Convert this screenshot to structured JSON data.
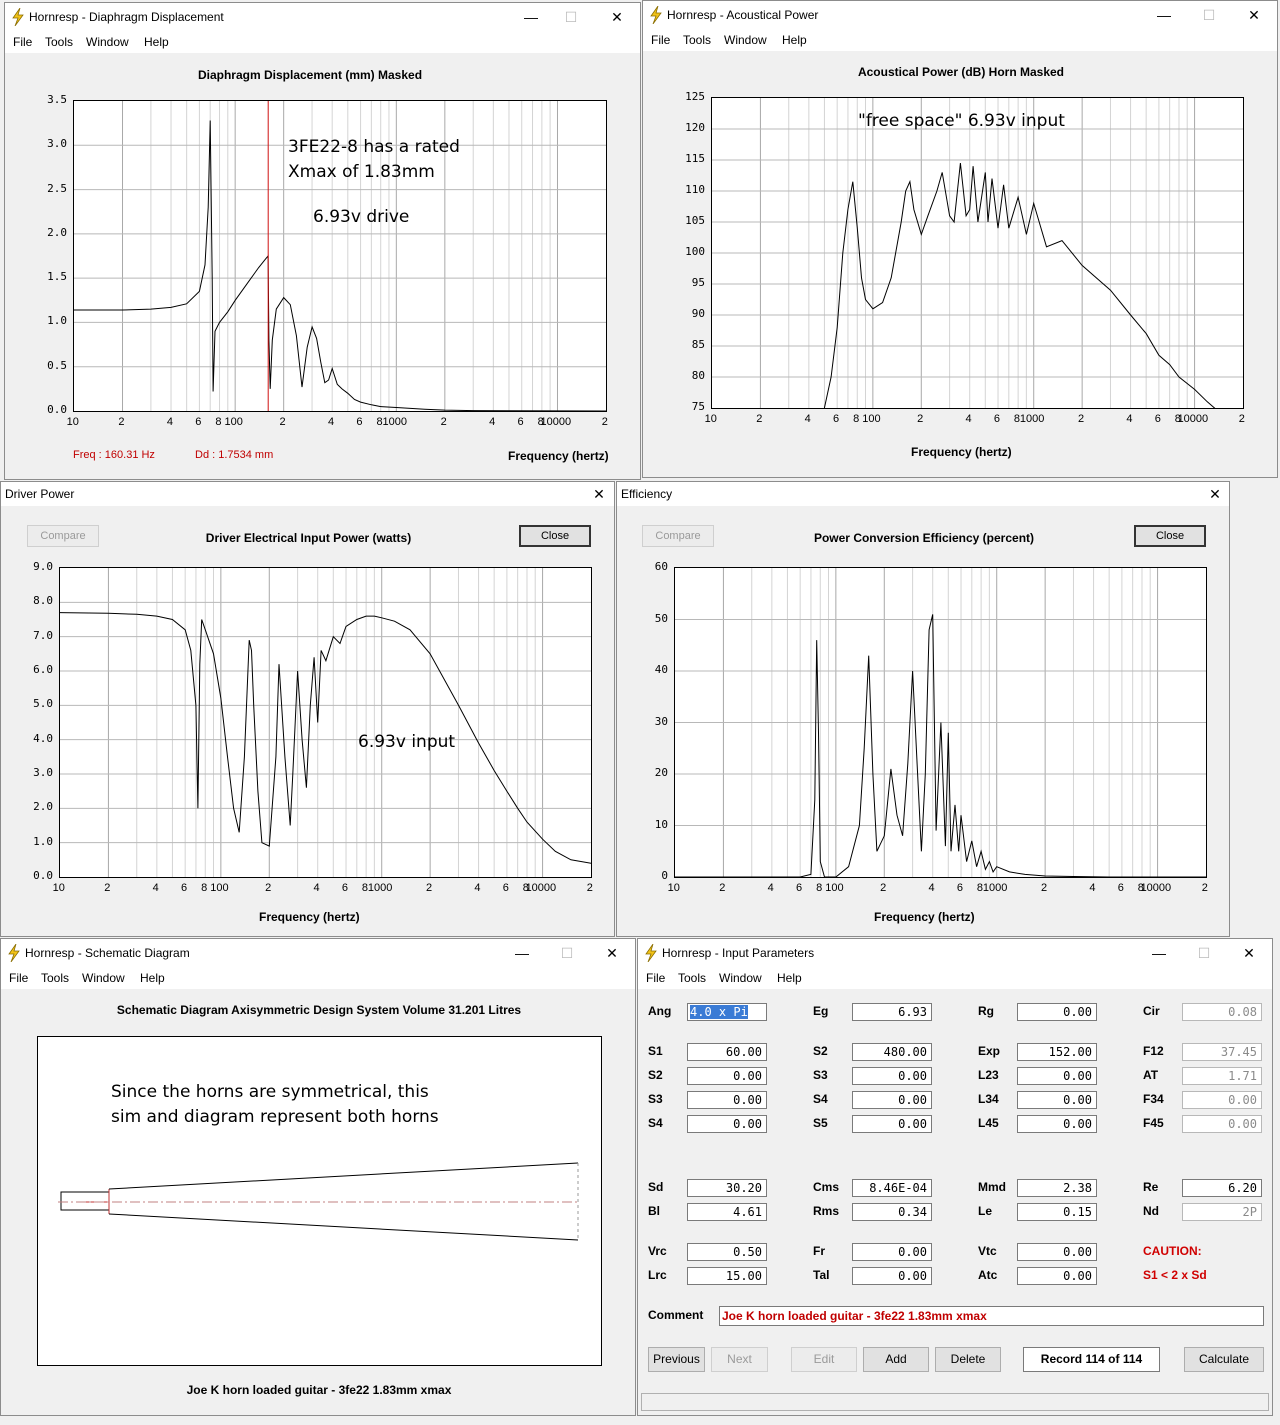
{
  "windows": {
    "displacement": {
      "title": "Hornresp - Diaphragm Displacement",
      "menu": [
        "File",
        "Tools",
        "Window",
        "Help"
      ],
      "plot_title": "Diaphragm Displacement (mm)   Masked",
      "x_axis_label": "Frequency (hertz)",
      "status_freq": "Freq : 160.31 Hz",
      "status_dd": "Dd : 1.7534 mm",
      "annotation_line1": "3FE22-8 has a rated",
      "annotation_line2": "Xmax of 1.83mm",
      "annotation_line3": "6.93v drive"
    },
    "acoustical": {
      "title": "Hornresp - Acoustical Power",
      "menu": [
        "File",
        "Tools",
        "Window",
        "Help"
      ],
      "plot_title": "Acoustical Power (dB)   Horn   Masked",
      "x_axis_label": "Frequency (hertz)",
      "annotation": "\"free space\"  6.93v input"
    },
    "driver_power": {
      "title": "Driver Power",
      "compare_label": "Compare",
      "close_label": "Close",
      "plot_title": "Driver Electrical Input Power (watts)",
      "x_axis_label": "Frequency (hertz)",
      "annotation": "6.93v input"
    },
    "efficiency": {
      "title": "Efficiency",
      "compare_label": "Compare",
      "close_label": "Close",
      "plot_title": "Power Conversion Efficiency (percent)",
      "x_axis_label": "Frequency (hertz)"
    },
    "schematic": {
      "title": "Hornresp - Schematic Diagram",
      "menu": [
        "File",
        "Tools",
        "Window",
        "Help"
      ],
      "header": "Schematic Diagram   Axisymmetric Design   System Volume 31.201 Litres",
      "annotation_line1": "Since the horns are symmetrical, this",
      "annotation_line2": "sim and diagram represent both horns",
      "footer": "Joe K horn loaded guitar - 3fe22  1.83mm xmax"
    },
    "input_params": {
      "title": "Hornresp - Input Parameters",
      "menu": [
        "File",
        "Tools",
        "Window",
        "Help"
      ],
      "params": [
        {
          "label": "Ang",
          "value": "4.0 x Pi",
          "col": 0,
          "row": 0,
          "state": "selected"
        },
        {
          "label": "Eg",
          "value": "6.93",
          "col": 1,
          "row": 0
        },
        {
          "label": "Rg",
          "value": "0.00",
          "col": 2,
          "row": 0
        },
        {
          "label": "Cir",
          "value": "0.08",
          "col": 3,
          "row": 0,
          "state": "readonly"
        },
        {
          "label": "S1",
          "value": "60.00",
          "col": 0,
          "row": 1
        },
        {
          "label": "S2",
          "value": "480.00",
          "col": 1,
          "row": 1
        },
        {
          "label": "Exp",
          "value": "152.00",
          "col": 2,
          "row": 1
        },
        {
          "label": "F12",
          "value": "37.45",
          "col": 3,
          "row": 1,
          "state": "readonly"
        },
        {
          "label": "S2",
          "value": "0.00",
          "col": 0,
          "row": 2
        },
        {
          "label": "S3",
          "value": "0.00",
          "col": 1,
          "row": 2
        },
        {
          "label": "L23",
          "value": "0.00",
          "col": 2,
          "row": 2
        },
        {
          "label": "AT",
          "value": "1.71",
          "col": 3,
          "row": 2,
          "state": "readonly"
        },
        {
          "label": "S3",
          "value": "0.00",
          "col": 0,
          "row": 3
        },
        {
          "label": "S4",
          "value": "0.00",
          "col": 1,
          "row": 3
        },
        {
          "label": "L34",
          "value": "0.00",
          "col": 2,
          "row": 3
        },
        {
          "label": "F34",
          "value": "0.00",
          "col": 3,
          "row": 3,
          "state": "readonly"
        },
        {
          "label": "S4",
          "value": "0.00",
          "col": 0,
          "row": 4
        },
        {
          "label": "S5",
          "value": "0.00",
          "col": 1,
          "row": 4
        },
        {
          "label": "L45",
          "value": "0.00",
          "col": 2,
          "row": 4
        },
        {
          "label": "F45",
          "value": "0.00",
          "col": 3,
          "row": 4,
          "state": "readonly"
        },
        {
          "label": "Sd",
          "value": "30.20",
          "col": 0,
          "row": 5
        },
        {
          "label": "Cms",
          "value": "8.46E-04",
          "col": 1,
          "row": 5
        },
        {
          "label": "Mmd",
          "value": "2.38",
          "col": 2,
          "row": 5
        },
        {
          "label": "Re",
          "value": "6.20",
          "col": 3,
          "row": 5
        },
        {
          "label": "Bl",
          "value": "4.61",
          "col": 0,
          "row": 6
        },
        {
          "label": "Rms",
          "value": "0.34",
          "col": 1,
          "row": 6
        },
        {
          "label": "Le",
          "value": "0.15",
          "col": 2,
          "row": 6
        },
        {
          "label": "Nd",
          "value": "2P",
          "col": 3,
          "row": 6,
          "state": "readonly"
        },
        {
          "label": "Vrc",
          "value": "0.50",
          "col": 0,
          "row": 7
        },
        {
          "label": "Fr",
          "value": "0.00",
          "col": 1,
          "row": 7
        },
        {
          "label": "Vtc",
          "value": "0.00",
          "col": 2,
          "row": 7
        },
        {
          "label": "Lrc",
          "value": "15.00",
          "col": 0,
          "row": 8
        },
        {
          "label": "Tal",
          "value": "0.00",
          "col": 1,
          "row": 8
        },
        {
          "label": "Atc",
          "value": "0.00",
          "col": 2,
          "row": 8
        }
      ],
      "caution_title": "CAUTION:",
      "caution_text": "S1 < 2 x Sd",
      "comment_label": "Comment",
      "comment_value": "Joe K horn loaded guitar - 3fe22  1.83mm xmax",
      "buttons": {
        "previous": "Previous",
        "next": "Next",
        "edit": "Edit",
        "add": "Add",
        "delete": "Delete",
        "record": "Record 114 of 114",
        "calculate": "Calculate"
      }
    }
  },
  "x_tick_labels": [
    "10",
    "2",
    "4",
    "6",
    "8",
    "100",
    "2",
    "4",
    "6",
    "8",
    "1000",
    "2",
    "4",
    "6",
    "8",
    "10000",
    "2"
  ],
  "chart_data": [
    {
      "type": "line",
      "title": "Diaphragm Displacement (mm)   Masked",
      "xlabel": "Frequency (hertz)",
      "xscale": "log",
      "xlim": [
        10,
        20000
      ],
      "ylim": [
        0,
        3.5
      ],
      "yticks": [
        "0.0",
        "0.5",
        "1.0",
        "1.5",
        "2.0",
        "2.5",
        "3.0",
        "3.5"
      ],
      "marker_x": 160.31,
      "series": [
        {
          "x": [
            10,
            20,
            30,
            40,
            50,
            60,
            65,
            68,
            70,
            72,
            73,
            75,
            80,
            90,
            100,
            120,
            140,
            155,
            160,
            162,
            165,
            170,
            180,
            200,
            220,
            240,
            260,
            280,
            300,
            320,
            340,
            360,
            380,
            400,
            430,
            460,
            500,
            550,
            600,
            700,
            800,
            1000,
            1500,
            2000,
            3000,
            5000,
            10000,
            20000
          ],
          "y": [
            1.14,
            1.14,
            1.15,
            1.17,
            1.21,
            1.35,
            1.65,
            2.3,
            3.28,
            1.5,
            0.22,
            0.9,
            1.0,
            1.12,
            1.25,
            1.45,
            1.62,
            1.72,
            1.75,
            0.8,
            0.25,
            0.8,
            1.15,
            1.28,
            1.2,
            0.85,
            0.27,
            0.72,
            0.95,
            0.82,
            0.55,
            0.32,
            0.35,
            0.48,
            0.3,
            0.25,
            0.2,
            0.13,
            0.1,
            0.07,
            0.05,
            0.04,
            0.02,
            0.01,
            0.005,
            0.002,
            0.001,
            0.0
          ]
        }
      ]
    },
    {
      "type": "line",
      "title": "Acoustical Power (dB)   Horn   Masked",
      "xlabel": "Frequency (hertz)",
      "xscale": "log",
      "xlim": [
        10,
        20000
      ],
      "ylim": [
        75,
        125
      ],
      "yticks": [
        "75",
        "80",
        "85",
        "90",
        "95",
        "100",
        "105",
        "110",
        "115",
        "120",
        "125"
      ],
      "series": [
        {
          "x": [
            50,
            55,
            60,
            65,
            70,
            75,
            80,
            85,
            90,
            100,
            115,
            130,
            150,
            160,
            170,
            180,
            200,
            220,
            250,
            270,
            300,
            320,
            350,
            380,
            400,
            420,
            450,
            500,
            520,
            550,
            600,
            650,
            700,
            800,
            900,
            1000,
            1200,
            1500,
            2000,
            3000,
            4000,
            5000,
            6000,
            7000,
            8000,
            10000,
            12000,
            14000
          ],
          "y": [
            75,
            80,
            88,
            100,
            107,
            111.5,
            104,
            96,
            92.5,
            91,
            92,
            96,
            105,
            110,
            111.5,
            107,
            103,
            106,
            110,
            113,
            106,
            105,
            114.5,
            106,
            107,
            114,
            105,
            113,
            105,
            112,
            104,
            111,
            104,
            109,
            103,
            108,
            101,
            102,
            98,
            94,
            90,
            87,
            83.5,
            82,
            80,
            78,
            76,
            74.5
          ]
        }
      ]
    },
    {
      "type": "line",
      "title": "Driver Electrical Input Power (watts)",
      "xlabel": "Frequency (hertz)",
      "xscale": "log",
      "xlim": [
        10,
        20000
      ],
      "ylim": [
        0,
        9
      ],
      "yticks": [
        "0.0",
        "1.0",
        "2.0",
        "3.0",
        "4.0",
        "5.0",
        "6.0",
        "7.0",
        "8.0",
        "9.0"
      ],
      "series": [
        {
          "x": [
            10,
            20,
            30,
            40,
            50,
            60,
            65,
            70,
            72,
            74,
            76,
            80,
            90,
            100,
            110,
            120,
            130,
            140,
            150,
            155,
            160,
            170,
            180,
            200,
            220,
            230,
            250,
            270,
            280,
            300,
            320,
            340,
            360,
            380,
            400,
            420,
            450,
            500,
            550,
            600,
            700,
            800,
            900,
            1000,
            1200,
            1500,
            2000,
            3000,
            4000,
            5000,
            6000,
            7000,
            8000,
            10000,
            12000,
            15000,
            20000
          ],
          "y": [
            7.7,
            7.68,
            7.65,
            7.6,
            7.5,
            7.2,
            6.6,
            5.0,
            2.0,
            6.2,
            7.5,
            7.2,
            6.5,
            5.2,
            3.5,
            2.0,
            1.3,
            3.5,
            6.9,
            6.6,
            5.0,
            2.5,
            1.0,
            0.9,
            3.5,
            6.2,
            3.5,
            1.5,
            3.0,
            6.0,
            4.0,
            2.6,
            5.0,
            6.4,
            4.5,
            6.6,
            6.3,
            7.0,
            6.8,
            7.3,
            7.5,
            7.6,
            7.6,
            7.55,
            7.45,
            7.2,
            6.5,
            5.0,
            3.9,
            3.1,
            2.5,
            2.0,
            1.6,
            1.1,
            0.75,
            0.5,
            0.4
          ]
        }
      ]
    },
    {
      "type": "line",
      "title": "Power Conversion Efficiency (percent)",
      "xlabel": "Frequency (hertz)",
      "xscale": "log",
      "xlim": [
        10,
        20000
      ],
      "ylim": [
        0,
        60
      ],
      "yticks": [
        "0",
        "10",
        "20",
        "30",
        "40",
        "50",
        "60"
      ],
      "series": [
        {
          "x": [
            10,
            60,
            70,
            74,
            76,
            78,
            80,
            85,
            100,
            120,
            140,
            150,
            160,
            170,
            180,
            200,
            220,
            240,
            260,
            280,
            300,
            320,
            340,
            360,
            380,
            400,
            420,
            450,
            480,
            500,
            520,
            550,
            580,
            600,
            650,
            700,
            750,
            800,
            850,
            900,
            950,
            1000,
            1200,
            1500,
            2000,
            3000,
            5000,
            20000
          ],
          "y": [
            0,
            0,
            0.5,
            15,
            46,
            28,
            3,
            0,
            0,
            2,
            10,
            25,
            43,
            20,
            5,
            8,
            21,
            12,
            8,
            22,
            40,
            22,
            5,
            20,
            48,
            51,
            9,
            30,
            6,
            28,
            5,
            14,
            5,
            12,
            3,
            7,
            2,
            5,
            1.5,
            3,
            1,
            2,
            1,
            0.5,
            0.2,
            0.1,
            0,
            0
          ]
        }
      ]
    }
  ]
}
